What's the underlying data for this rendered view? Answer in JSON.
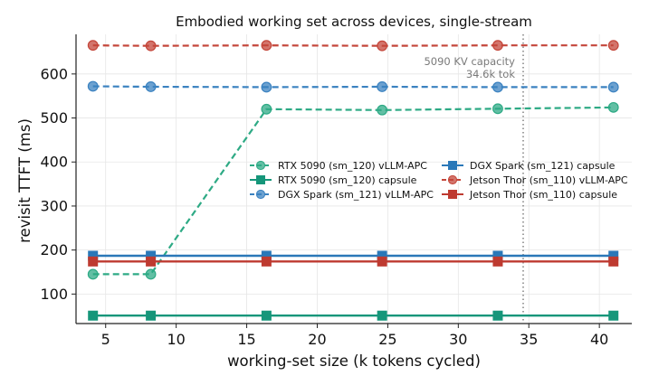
{
  "chart_data": {
    "type": "line",
    "title": "Embodied working set across devices, single-stream",
    "xlabel": "working-set size (k tokens cycled)",
    "ylabel": "revisit TTFT (ms)",
    "xlim": [
      2.9,
      42.3
    ],
    "ylim": [
      33,
      690
    ],
    "xticks": [
      5,
      10,
      15,
      20,
      25,
      30,
      35,
      40
    ],
    "yticks": [
      100,
      200,
      300,
      400,
      500,
      600
    ],
    "grid": true,
    "legend_location": "center-right",
    "series": [
      {
        "name": "RTX 5090 (sm_120) vLLM-APC",
        "color": "#2eaa85",
        "linestyle": "dashed",
        "marker": "circle",
        "x": [
          4.1,
          8.2,
          16.4,
          24.6,
          32.8,
          41.0
        ],
        "y": [
          145,
          145,
          520,
          518,
          521,
          524
        ]
      },
      {
        "name": "RTX 5090 (sm_120) capsule",
        "color": "#16967a",
        "linestyle": "solid",
        "marker": "square",
        "x": [
          4.1,
          8.2,
          16.4,
          24.6,
          32.8,
          41.0
        ],
        "y": [
          51,
          51,
          51,
          51,
          51,
          51
        ]
      },
      {
        "name": "DGX Spark (sm_121) vLLM-APC",
        "color": "#3b82c0",
        "linestyle": "dashed",
        "marker": "circle",
        "x": [
          4.1,
          8.2,
          16.4,
          24.6,
          32.8,
          41.0
        ],
        "y": [
          572,
          571,
          570,
          571,
          570,
          570
        ]
      },
      {
        "name": "DGX Spark (sm_121) capsule",
        "color": "#2a78b8",
        "linestyle": "solid",
        "marker": "square",
        "x": [
          4.1,
          8.2,
          16.4,
          24.6,
          32.8,
          41.0
        ],
        "y": [
          187,
          187,
          187,
          187,
          187,
          187
        ]
      },
      {
        "name": "Jetson Thor (sm_110) vLLM-APC",
        "color": "#c4463a",
        "linestyle": "dashed",
        "marker": "circle",
        "x": [
          4.1,
          8.2,
          16.4,
          24.6,
          32.8,
          41.0
        ],
        "y": [
          665,
          664,
          665,
          664,
          665,
          665
        ]
      },
      {
        "name": "Jetson Thor (sm_110) capsule",
        "color": "#be3a30",
        "linestyle": "solid",
        "marker": "square",
        "x": [
          4.1,
          8.2,
          16.4,
          24.6,
          32.8,
          41.0
        ],
        "y": [
          174,
          174,
          174,
          174,
          174,
          174
        ]
      }
    ],
    "annotations": [
      {
        "type": "vline",
        "x": 34.6,
        "color": "#777777",
        "style": "dotted",
        "label_lines": [
          "5090 KV capacity",
          "34.6k tok"
        ]
      }
    ]
  }
}
